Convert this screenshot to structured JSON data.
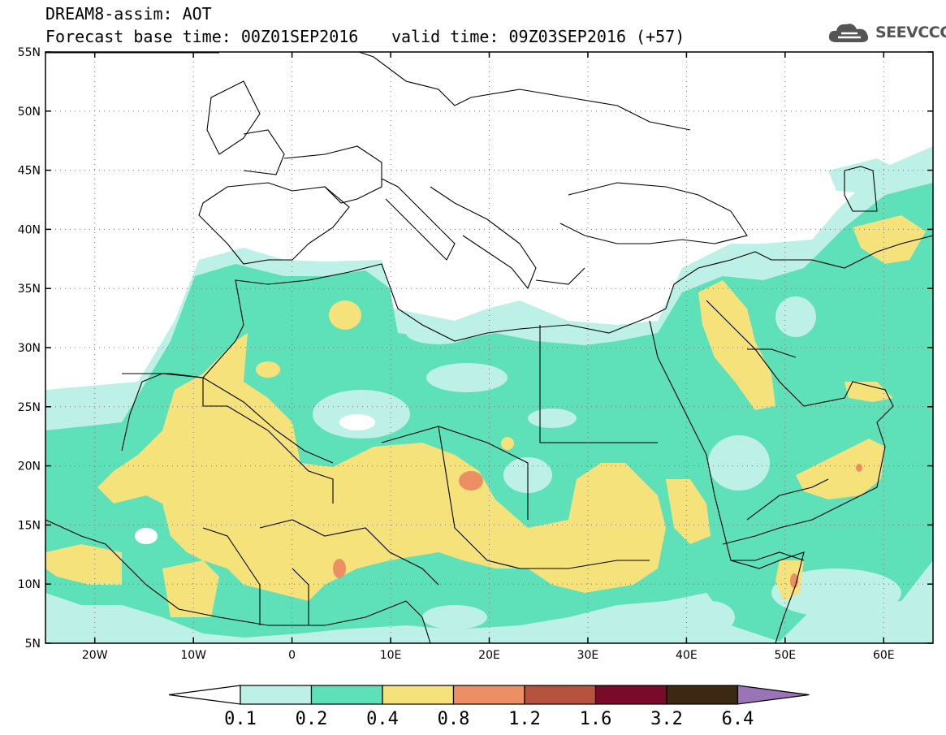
{
  "header": {
    "title": "DREAM8-assim: AOT",
    "base_time": "Forecast base time: 00Z01SEP2016",
    "valid_time": "valid time: 09Z03SEP2016 (+57)",
    "logo_text": "SEEVCCC",
    "logo_icon": "cloud-logo-icon"
  },
  "map": {
    "lon_range": [
      -25,
      65
    ],
    "lat_range": [
      5,
      55
    ],
    "grid": "dotted",
    "lat_ticks": [
      {
        "value": 55,
        "label": "55N"
      },
      {
        "value": 50,
        "label": "50N"
      },
      {
        "value": 45,
        "label": "45N"
      },
      {
        "value": 40,
        "label": "40N"
      },
      {
        "value": 35,
        "label": "35N"
      },
      {
        "value": 30,
        "label": "30N"
      },
      {
        "value": 25,
        "label": "25N"
      },
      {
        "value": 20,
        "label": "20N"
      },
      {
        "value": 15,
        "label": "15N"
      },
      {
        "value": 10,
        "label": "10N"
      },
      {
        "value": 5,
        "label": "5N"
      }
    ],
    "lon_ticks": [
      {
        "value": -20,
        "label": "20W"
      },
      {
        "value": -10,
        "label": "10W"
      },
      {
        "value": 0,
        "label": "0"
      },
      {
        "value": 10,
        "label": "10E"
      },
      {
        "value": 20,
        "label": "20E"
      },
      {
        "value": 30,
        "label": "30E"
      },
      {
        "value": 40,
        "label": "40E"
      },
      {
        "value": 50,
        "label": "50E"
      },
      {
        "value": 60,
        "label": "60E"
      }
    ]
  },
  "colorbar": {
    "levels": [
      "0.1",
      "0.2",
      "0.4",
      "0.8",
      "1.2",
      "1.6",
      "3.2",
      "6.4"
    ],
    "colors": [
      "#ffffff",
      "#bdf0e6",
      "#5ee0b8",
      "#f5e27a",
      "#ec8f65",
      "#b5533f",
      "#7a0a2a",
      "#3d2814",
      "#9b74b8"
    ]
  }
}
